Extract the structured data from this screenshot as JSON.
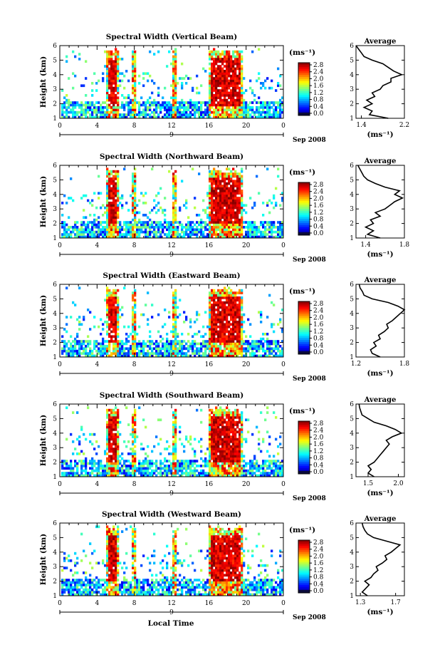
{
  "figure": {
    "panels": [
      {
        "title": "Spectral Width (Vertical Beam)",
        "cbar_ticks": [
          "2.8",
          "2.4",
          "2.0",
          "1.6",
          "1.2",
          "0.8",
          "0.4",
          "0.0"
        ],
        "avg_ticks": [
          "1.4",
          "2.2"
        ]
      },
      {
        "title": "Spectral Width (Northward Beam)",
        "cbar_ticks": [
          "2.8",
          "2.4",
          "2.0",
          "1.6",
          "1.2",
          "0.8",
          "0.4",
          "0.0"
        ],
        "avg_ticks": [
          "1.4",
          "1.8"
        ]
      },
      {
        "title": "Spectral Width (Eastward Beam)",
        "cbar_ticks": [
          "2.8",
          "2.4",
          "2.0",
          "1.6",
          "1.2",
          "0.8",
          "0.4",
          "0.0"
        ],
        "avg_ticks": [
          "1.2",
          "1.8"
        ]
      },
      {
        "title": "Spectral Width (Southward Beam)",
        "cbar_ticks": [
          "2.8",
          "2.4",
          "2.0",
          "1.6",
          "1.2",
          "0.8",
          "0.4",
          "0.0"
        ],
        "avg_ticks": [
          "1.5",
          "2.0"
        ]
      },
      {
        "title": "Spectral Width (Westward Beam)",
        "cbar_ticks": [
          "2.8",
          "2.4",
          "2.0",
          "1.6",
          "1.2",
          "0.8",
          "0.4",
          "0.0"
        ],
        "avg_ticks": [
          "1.3",
          "1.7"
        ]
      }
    ],
    "ylabel": "Height (km)",
    "y_ticks": [
      "1",
      "2",
      "3",
      "4",
      "5",
      "6"
    ],
    "x_ticks": [
      "0",
      "4",
      "8",
      "12",
      "16",
      "20",
      "0"
    ],
    "day_label": "9",
    "month_label": "Sep 2008",
    "cbar_unit": "(ms⁻¹)",
    "avg_title": "Average",
    "avg_unit": "(ms⁻¹)",
    "xlabel": "Local Time",
    "colors": {
      "low": "#1a1a80",
      "mid": "#29b8e6",
      "high": "#ee2222"
    }
  },
  "chart_data": [
    {
      "type": "heatmap",
      "title": "Spectral Width (Vertical Beam)",
      "xlabel": "",
      "ylabel": "Height (km)",
      "xlim": [
        0,
        24
      ],
      "ylim": [
        1,
        6
      ],
      "colorbar": {
        "unit": "(ms⁻¹)",
        "range": [
          0.0,
          2.8
        ]
      },
      "average_profile": {
        "title": "Average",
        "xlabel": "(ms⁻¹)",
        "xlim": [
          1.3,
          2.2
        ],
        "height": [
          1.0,
          1.25,
          1.5,
          1.75,
          2.0,
          2.25,
          2.5,
          2.75,
          3.0,
          3.25,
          3.5,
          3.75,
          4.0,
          4.25,
          4.5,
          4.75,
          5.0,
          5.25,
          5.5,
          5.75,
          6.0
        ],
        "width": [
          1.9,
          1.55,
          1.6,
          1.45,
          1.6,
          1.5,
          1.65,
          1.6,
          1.75,
          1.8,
          1.95,
          1.95,
          2.15,
          2.0,
          1.9,
          1.8,
          1.6,
          1.45,
          1.4,
          1.35,
          1.3
        ]
      }
    },
    {
      "type": "heatmap",
      "title": "Spectral Width (Northward Beam)",
      "xlabel": "",
      "ylabel": "Height (km)",
      "xlim": [
        0,
        24
      ],
      "ylim": [
        1,
        6
      ],
      "colorbar": {
        "unit": "(ms⁻¹)",
        "range": [
          0.0,
          2.8
        ]
      },
      "average_profile": {
        "title": "Average",
        "xlabel": "(ms⁻¹)",
        "xlim": [
          1.3,
          1.8
        ],
        "height": [
          1.0,
          1.25,
          1.5,
          1.75,
          2.0,
          2.25,
          2.5,
          2.75,
          3.0,
          3.25,
          3.5,
          3.75,
          4.0,
          4.25,
          4.5,
          4.75,
          5.0,
          5.25,
          5.5,
          5.75,
          6.0
        ],
        "width": [
          1.55,
          1.42,
          1.48,
          1.4,
          1.48,
          1.45,
          1.55,
          1.5,
          1.6,
          1.65,
          1.7,
          1.78,
          1.7,
          1.75,
          1.6,
          1.5,
          1.42,
          1.38,
          1.36,
          1.34,
          1.32
        ]
      }
    },
    {
      "type": "heatmap",
      "title": "Spectral Width (Eastward Beam)",
      "xlabel": "",
      "ylabel": "Height (km)",
      "xlim": [
        0,
        24
      ],
      "ylim": [
        1,
        6
      ],
      "colorbar": {
        "unit": "(ms⁻¹)",
        "range": [
          0.0,
          2.8
        ]
      },
      "average_profile": {
        "title": "Average",
        "xlabel": "(ms⁻¹)",
        "xlim": [
          1.2,
          1.8
        ],
        "height": [
          1.0,
          1.25,
          1.5,
          1.75,
          2.0,
          2.25,
          2.5,
          2.75,
          3.0,
          3.25,
          3.5,
          3.75,
          4.0,
          4.25,
          4.5,
          4.75,
          5.0,
          5.25,
          5.5,
          5.75,
          6.0
        ],
        "width": [
          1.5,
          1.4,
          1.38,
          1.45,
          1.42,
          1.5,
          1.48,
          1.55,
          1.6,
          1.58,
          1.65,
          1.7,
          1.75,
          1.8,
          1.72,
          1.6,
          1.4,
          1.3,
          1.28,
          1.25,
          1.24
        ]
      }
    },
    {
      "type": "heatmap",
      "title": "Spectral Width (Southward Beam)",
      "xlabel": "",
      "ylabel": "Height (km)",
      "xlim": [
        0,
        24
      ],
      "ylim": [
        1,
        6
      ],
      "colorbar": {
        "unit": "(ms⁻¹)",
        "range": [
          0.0,
          2.8
        ]
      },
      "average_profile": {
        "title": "Average",
        "xlabel": "(ms⁻¹)",
        "xlim": [
          1.3,
          2.1
        ],
        "height": [
          1.0,
          1.25,
          1.5,
          1.75,
          2.0,
          2.25,
          2.5,
          2.75,
          3.0,
          3.25,
          3.5,
          3.75,
          4.0,
          4.25,
          4.5,
          4.75,
          5.0,
          5.25,
          5.5,
          5.75,
          6.0
        ],
        "width": [
          1.6,
          1.5,
          1.55,
          1.5,
          1.6,
          1.65,
          1.7,
          1.75,
          1.8,
          1.85,
          1.8,
          1.9,
          2.05,
          1.95,
          1.8,
          1.6,
          1.5,
          1.4,
          1.38,
          1.36,
          1.35
        ]
      }
    },
    {
      "type": "heatmap",
      "title": "Spectral Width (Westward Beam)",
      "xlabel": "Local Time",
      "ylabel": "Height (km)",
      "xlim": [
        0,
        24
      ],
      "ylim": [
        1,
        6
      ],
      "colorbar": {
        "unit": "(ms⁻¹)",
        "range": [
          0.0,
          2.8
        ]
      },
      "average_profile": {
        "title": "Average",
        "xlabel": "(ms⁻¹)",
        "xlim": [
          1.25,
          1.8
        ],
        "height": [
          1.0,
          1.25,
          1.5,
          1.75,
          2.0,
          2.25,
          2.5,
          2.75,
          3.0,
          3.25,
          3.5,
          3.75,
          4.0,
          4.25,
          4.5,
          4.75,
          5.0,
          5.25,
          5.5,
          5.75,
          6.0
        ],
        "width": [
          1.38,
          1.32,
          1.36,
          1.4,
          1.35,
          1.42,
          1.45,
          1.5,
          1.48,
          1.55,
          1.6,
          1.58,
          1.65,
          1.7,
          1.75,
          1.6,
          1.45,
          1.38,
          1.35,
          1.33,
          1.32
        ]
      }
    }
  ]
}
